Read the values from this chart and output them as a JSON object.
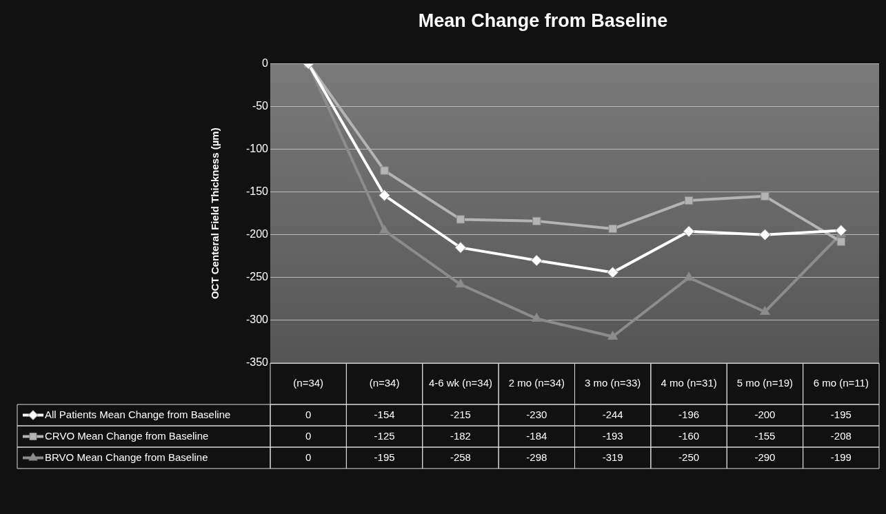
{
  "chart_data": {
    "type": "line",
    "title": "Mean Change from Baseline",
    "ylabel": "OCT Centeral Field Thickness (µm)",
    "categories": [
      "(n=34)",
      "(n=34)",
      "4-6 wk (n=34)",
      "2 mo (n=34)",
      "3 mo (n=33)",
      "4 mo (n=31)",
      "5 mo (n=19)",
      "6 mo (n=11)"
    ],
    "series": [
      {
        "name": "All Patients Mean Change from Baseline",
        "color": "#ffffff",
        "marker": "diamond",
        "values": [
          0,
          -154,
          -215,
          -230,
          -244,
          -196,
          -200,
          -195
        ]
      },
      {
        "name": "CRVO Mean Change from Baseline",
        "color": "#b4b4b4",
        "marker": "square",
        "values": [
          0,
          -125,
          -182,
          -184,
          -193,
          -160,
          -155,
          -208
        ]
      },
      {
        "name": "BRVO Mean Change from Baseline",
        "color": "#8c8c8c",
        "marker": "triangle",
        "values": [
          0,
          -195,
          -258,
          -298,
          -319,
          -250,
          -290,
          -199
        ]
      }
    ],
    "ylim": [
      -350,
      0
    ],
    "yticks": [
      -350,
      -300,
      -250,
      -200,
      -150,
      -100,
      -50,
      0
    ],
    "grid": "y",
    "legend": "bottom",
    "data_labels": true
  }
}
